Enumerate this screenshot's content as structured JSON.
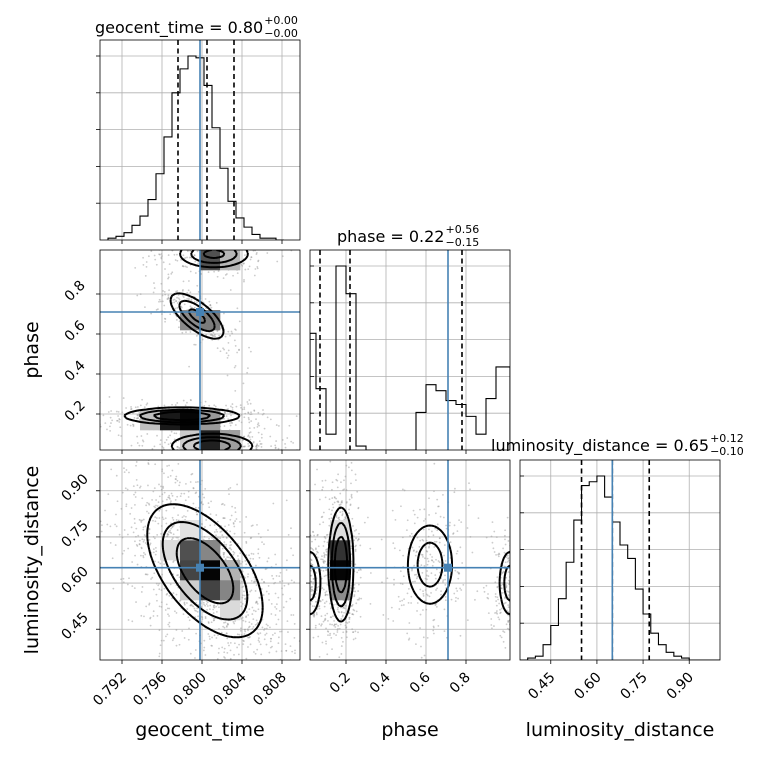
{
  "figure": {
    "parameters": [
      "geocent_time",
      "phase",
      "luminosity_distance"
    ],
    "axis_labels": {
      "geocent_time": "geocent_time",
      "phase": "phase",
      "luminosity_distance": "luminosity_distance"
    },
    "titles": [
      {
        "param": "geocent_time",
        "text": "geocent_time = 0.80",
        "sup": "+0.00",
        "sub": "−0.00"
      },
      {
        "param": "phase",
        "text": "phase = 0.22",
        "sup": "+0.56",
        "sub": "−0.15"
      },
      {
        "param": "luminosity_distance",
        "text": "luminosity_distance = 0.65",
        "sup": "+0.12",
        "sub": "−0.10"
      }
    ],
    "truth_color": "#4682b4"
  },
  "chart_data": {
    "type": "corner",
    "parameters": [
      {
        "name": "geocent_time",
        "range": [
          0.7898,
          0.8098
        ],
        "ticks": [
          0.792,
          0.796,
          0.8,
          0.804,
          0.808
        ],
        "tick_labels": [
          "0.792",
          "0.796",
          "0.800",
          "0.804",
          "0.808"
        ],
        "truth": 0.7998,
        "median": 0.8005,
        "quantiles": [
          0.7976,
          0.8032
        ],
        "hist_edges_start": 0.7906,
        "hist_bin_width": 0.0008,
        "hist_counts": [
          0.01,
          0.02,
          0.04,
          0.08,
          0.13,
          0.22,
          0.36,
          0.56,
          0.8,
          0.93,
          1.0,
          0.99,
          0.84,
          0.61,
          0.39,
          0.21,
          0.12,
          0.07,
          0.03,
          0.01,
          0.01,
          0.0
        ]
      },
      {
        "name": "phase",
        "range": [
          0.02,
          1.02
        ],
        "ticks": [
          0.2,
          0.4,
          0.6,
          0.8
        ],
        "tick_labels": [
          "0.2",
          "0.4",
          "0.6",
          "0.8"
        ],
        "truth": 0.71,
        "median": 0.22,
        "quantiles": [
          0.07,
          0.78
        ],
        "hist_edges": [
          0.02,
          0.05,
          0.1,
          0.15,
          0.2,
          0.25,
          0.3,
          0.55,
          0.6,
          0.65,
          0.7,
          0.75,
          0.8,
          0.85,
          0.9,
          0.95,
          1.02
        ],
        "hist_counts": [
          0.59,
          0.31,
          0.08,
          0.93,
          0.79,
          0.02,
          0.0,
          0.19,
          0.33,
          0.3,
          0.25,
          0.23,
          0.17,
          0.08,
          0.26,
          0.42
        ]
      },
      {
        "name": "luminosity_distance",
        "range": [
          0.35,
          1.0
        ],
        "ticks": [
          0.45,
          0.6,
          0.75,
          0.9
        ],
        "tick_labels": [
          "0.45",
          "0.60",
          "0.75",
          "0.90"
        ],
        "truth": 0.65,
        "median": 0.65,
        "quantiles": [
          0.55,
          0.77
        ],
        "hist_edges_start": 0.35,
        "hist_bin_width": 0.025,
        "hist_counts": [
          0.0,
          0.01,
          0.02,
          0.08,
          0.18,
          0.32,
          0.51,
          0.73,
          0.91,
          0.93,
          0.96,
          0.85,
          0.72,
          0.6,
          0.53,
          0.37,
          0.24,
          0.14,
          0.08,
          0.04,
          0.02,
          0.01,
          0.0,
          0.0,
          0.0,
          0.0
        ]
      }
    ],
    "pairs": [
      {
        "x": "geocent_time",
        "y": "phase",
        "blobs": [
          {
            "cx": 0.7995,
            "cy": 0.69,
            "sx": 0.0014,
            "sy": 0.06,
            "rho": -0.7,
            "w": 0.7
          },
          {
            "cx": 0.798,
            "cy": 0.19,
            "sx": 0.0028,
            "sy": 0.02,
            "rho": 0.0,
            "w": 1.0
          },
          {
            "cx": 0.801,
            "cy": 0.04,
            "sx": 0.002,
            "sy": 0.03,
            "rho": 0.0,
            "w": 0.9
          },
          {
            "cx": 0.8012,
            "cy": 1.0,
            "sx": 0.0018,
            "sy": 0.035,
            "rho": 0.0,
            "w": 0.7
          }
        ]
      },
      {
        "x": "geocent_time",
        "y": "luminosity_distance",
        "blobs": [
          {
            "cx": 0.8003,
            "cy": 0.64,
            "sx": 0.0028,
            "sy": 0.105,
            "rho": -0.55,
            "w": 1.0
          }
        ]
      },
      {
        "x": "phase",
        "y": "luminosity_distance",
        "blobs": [
          {
            "cx": 0.175,
            "cy": 0.66,
            "sx": 0.03,
            "sy": 0.09,
            "rho": 0.0,
            "w": 1.0
          },
          {
            "cx": 0.62,
            "cy": 0.66,
            "sx": 0.065,
            "sy": 0.075,
            "rho": 0.0,
            "w": 0.5
          },
          {
            "cx": 0.02,
            "cy": 0.6,
            "sx": 0.03,
            "sy": 0.06,
            "rho": 0.0,
            "w": 0.5
          },
          {
            "cx": 1.02,
            "cy": 0.6,
            "sx": 0.03,
            "sy": 0.06,
            "rho": 0.0,
            "w": 0.5
          }
        ]
      }
    ]
  }
}
